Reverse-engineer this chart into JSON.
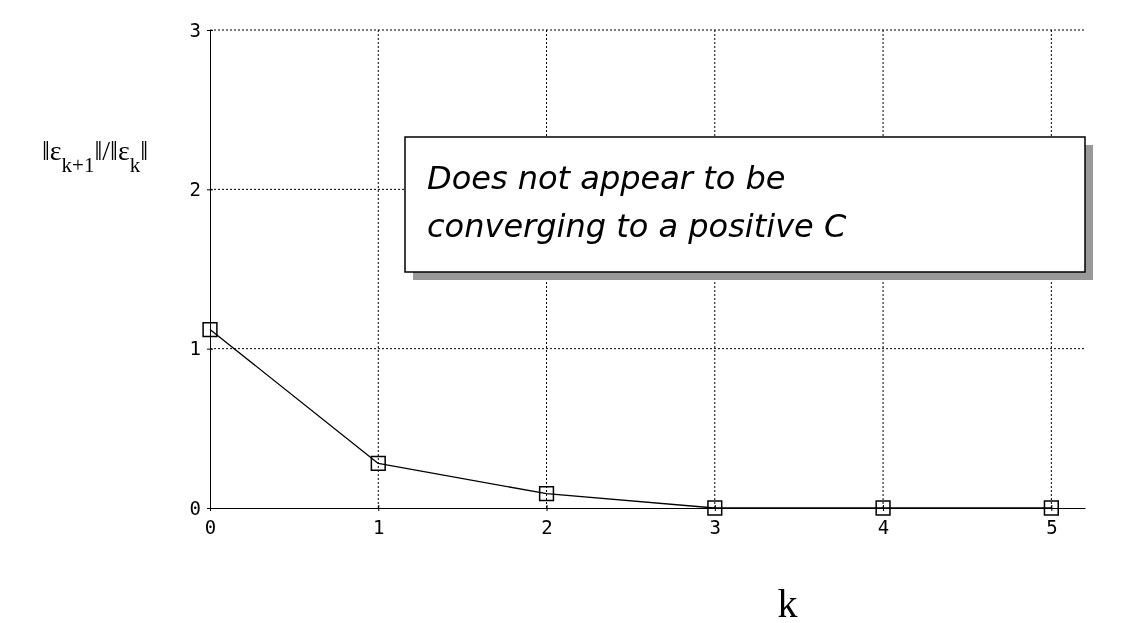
{
  "chart_data": {
    "type": "line",
    "x": [
      0,
      1,
      2,
      3,
      4,
      5
    ],
    "series": [
      {
        "color": "#000000",
        "values": [
          1.12,
          0.28,
          0.09,
          0,
          0,
          0
        ]
      }
    ],
    "xlim": [
      0,
      5.2
    ],
    "xticks": [
      0,
      1,
      2,
      3,
      4,
      5
    ],
    "ylim": [
      0,
      3
    ],
    "yticks": [
      0,
      1,
      2,
      3
    ],
    "xlabel": "k",
    "ylabel": "‖ε$_{k+1}$‖/‖ε$_{k}$‖",
    "annotations": [
      "Does not appear to be converging to a positive C"
    ],
    "grid": true,
    "marker": "square",
    "line_style": "solid"
  }
}
